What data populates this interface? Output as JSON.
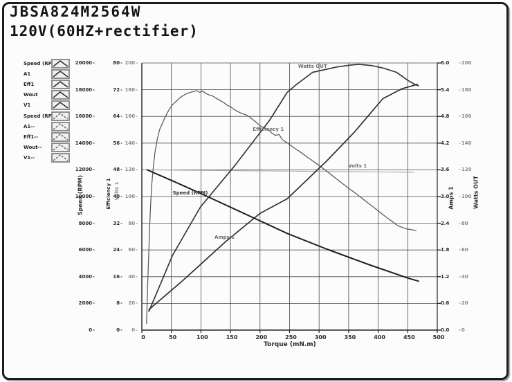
{
  "header": {
    "model": "JBSA824M2564W",
    "condition": "120V(60HZ+rectifier)"
  },
  "legend": {
    "items": [
      {
        "label": "Speed (RP",
        "swatch": "chevron-line-icon",
        "dashed": false
      },
      {
        "label": "A1",
        "swatch": "chevron-line-icon",
        "dashed": false
      },
      {
        "label": "Eff1",
        "swatch": "chevron-line-icon",
        "dashed": false
      },
      {
        "label": "Wout",
        "swatch": "chevron-line-icon",
        "dashed": false
      },
      {
        "label": "V1",
        "swatch": "chevron-line-icon",
        "dashed": false
      },
      {
        "label": "Speed (RP",
        "swatch": "chevron-line-icon",
        "dashed": true
      },
      {
        "label": "A1--",
        "swatch": "chevron-line-icon",
        "dashed": true
      },
      {
        "label": "Eff1--",
        "swatch": "chevron-line-icon",
        "dashed": true
      },
      {
        "label": "Wout--",
        "swatch": "chevron-line-icon",
        "dashed": true
      },
      {
        "label": "V1--",
        "swatch": "chevron-line-icon",
        "dashed": true
      }
    ]
  },
  "chart_data": {
    "type": "line",
    "xlabel": "Torque (mN.m)",
    "x_range": [
      0,
      500
    ],
    "x_ticks": [
      0,
      50,
      100,
      150,
      200,
      250,
      300,
      350,
      400,
      450,
      500
    ],
    "grid": true,
    "axes": [
      {
        "id": "speed",
        "title": "Speed (RPM)",
        "range": [
          0,
          20000
        ],
        "ticks": [
          "0",
          "2000",
          "4000",
          "6000",
          "8000",
          "10000",
          "12000",
          "14000",
          "16000",
          "18000",
          "20000"
        ]
      },
      {
        "id": "eff",
        "title": "Efficiency 1",
        "range": [
          0,
          80
        ],
        "ticks": [
          "0",
          "8",
          "16",
          "24",
          "32",
          "40",
          "48",
          "56",
          "64",
          "72",
          "80"
        ]
      },
      {
        "id": "volts",
        "title": "Volts 1",
        "range": [
          0,
          200
        ],
        "ticks": [
          "0",
          "20",
          "40",
          "60",
          "80",
          "100",
          "120",
          "140",
          "160",
          "180",
          "200"
        ]
      },
      {
        "id": "amps",
        "title": "Amps 1",
        "range": [
          0,
          6
        ],
        "ticks": [
          "0.0",
          "0.6",
          "1.2",
          "1.8",
          "2.4",
          "3.0",
          "3.6",
          "4.2",
          "4.8",
          "5.4",
          "6.0"
        ]
      },
      {
        "id": "watts",
        "title": "Watts OUT",
        "range": [
          0,
          200
        ],
        "ticks": [
          "0",
          "20",
          "40",
          "60",
          "80",
          "100",
          "120",
          "140",
          "160",
          "180",
          "200"
        ]
      }
    ],
    "series": [
      {
        "name": "Volts 1",
        "axis": "volts",
        "color": "#a8a8a8",
        "points": [
          [
            9,
            120
          ],
          [
            100,
            119.6
          ],
          [
            200,
            119.2
          ],
          [
            300,
            118.8
          ],
          [
            400,
            118.4
          ],
          [
            460,
            118.2
          ]
        ]
      },
      {
        "name": "Efficiency 1",
        "axis": "eff",
        "color": "#5d5d5d",
        "points": [
          [
            8,
            2
          ],
          [
            10,
            14
          ],
          [
            12,
            24
          ],
          [
            13,
            30
          ],
          [
            15,
            38
          ],
          [
            17,
            44
          ],
          [
            19,
            48
          ],
          [
            22,
            53
          ],
          [
            26,
            57
          ],
          [
            30,
            60
          ],
          [
            35,
            62
          ],
          [
            40,
            64
          ],
          [
            46,
            66
          ],
          [
            52,
            67.5
          ],
          [
            58,
            68.5
          ],
          [
            64,
            69.5
          ],
          [
            70,
            70.3
          ],
          [
            76,
            70.8
          ],
          [
            82,
            71.2
          ],
          [
            88,
            71.5
          ],
          [
            93,
            71.7
          ],
          [
            98,
            71.2
          ],
          [
            103,
            71.6
          ],
          [
            108,
            70.9
          ],
          [
            114,
            70.4
          ],
          [
            120,
            70.1
          ],
          [
            126,
            69.4
          ],
          [
            132,
            68.8
          ],
          [
            138,
            68.2
          ],
          [
            144,
            67.4
          ],
          [
            150,
            66.9
          ],
          [
            156,
            66.1
          ],
          [
            163,
            65.4
          ],
          [
            170,
            64.8
          ],
          [
            176,
            64.5
          ],
          [
            182,
            63.9
          ],
          [
            188,
            63.0
          ],
          [
            194,
            62.2
          ],
          [
            200,
            61.2
          ],
          [
            207,
            60.5
          ],
          [
            214,
            60.1
          ],
          [
            220,
            59.0
          ],
          [
            226,
            58.3
          ],
          [
            232,
            58.6
          ],
          [
            238,
            57.0
          ],
          [
            245,
            56.2
          ],
          [
            252,
            55.3
          ],
          [
            259,
            54.4
          ],
          [
            266,
            53.6
          ],
          [
            273,
            52.7
          ],
          [
            280,
            51.8
          ],
          [
            288,
            50.8
          ],
          [
            296,
            49.8
          ],
          [
            304,
            48.8
          ],
          [
            312,
            47.7
          ],
          [
            320,
            46.6
          ],
          [
            328,
            45.5
          ],
          [
            336,
            44.4
          ],
          [
            344,
            43.3
          ],
          [
            352,
            42.2
          ],
          [
            360,
            41.2
          ],
          [
            368,
            40.1
          ],
          [
            376,
            39.0
          ],
          [
            384,
            37.9
          ],
          [
            392,
            36.8
          ],
          [
            400,
            35.7
          ],
          [
            408,
            34.6
          ],
          [
            416,
            33.5
          ],
          [
            424,
            32.5
          ],
          [
            432,
            31.4
          ],
          [
            440,
            30.8
          ],
          [
            448,
            30.3
          ],
          [
            456,
            30.1
          ],
          [
            464,
            29.8
          ]
        ]
      },
      {
        "name": "Watts OUT",
        "axis": "watts",
        "color": "#383838",
        "points": [
          [
            12,
            14
          ],
          [
            52,
            56
          ],
          [
            99,
            92
          ],
          [
            157,
            123
          ],
          [
            216,
            157
          ],
          [
            246,
            178
          ],
          [
            262,
            184
          ],
          [
            289,
            193
          ],
          [
            330,
            197
          ],
          [
            355,
            198.5
          ],
          [
            367,
            199
          ],
          [
            390,
            198
          ],
          [
            410,
            196
          ],
          [
            431,
            193
          ],
          [
            450,
            187
          ],
          [
            462,
            184
          ],
          [
            468,
            183
          ]
        ]
      },
      {
        "name": "Amps 1",
        "axis": "amps",
        "color": "#2d2d2d",
        "points": [
          [
            12,
            0.46
          ],
          [
            70,
            1.12
          ],
          [
            143,
            2.0
          ],
          [
            200,
            2.62
          ],
          [
            246,
            2.95
          ],
          [
            313,
            3.8
          ],
          [
            360,
            4.45
          ],
          [
            408,
            5.2
          ],
          [
            440,
            5.42
          ],
          [
            466,
            5.52
          ]
        ]
      },
      {
        "name": "Speed (RPM)",
        "axis": "speed",
        "color": "#1f1f1f",
        "points": [
          [
            9,
            12000
          ],
          [
            64,
            10940
          ],
          [
            111,
            10000
          ],
          [
            160,
            9000
          ],
          [
            200,
            8180
          ],
          [
            246,
            7240
          ],
          [
            313,
            6060
          ],
          [
            383,
            4920
          ],
          [
            451,
            3880
          ],
          [
            468,
            3670
          ]
        ]
      }
    ],
    "annotations": [
      {
        "text": "Watts OUT",
        "t": 289,
        "v": 197.4,
        "axis": "watts",
        "style": "gray"
      },
      {
        "text": "Efficiency 1",
        "t": 214,
        "v": 60.1,
        "axis": "eff",
        "style": "gray"
      },
      {
        "text": "Volts 1",
        "t": 365,
        "v": 122.8,
        "axis": "volts",
        "style": "gray"
      },
      {
        "text": "Speed (RPM)",
        "t": 82,
        "v": 10260,
        "axis": "speed",
        "style": "dark"
      },
      {
        "text": "Amps 1",
        "t": 140,
        "v": 2.08,
        "axis": "amps",
        "style": "gray"
      }
    ]
  }
}
